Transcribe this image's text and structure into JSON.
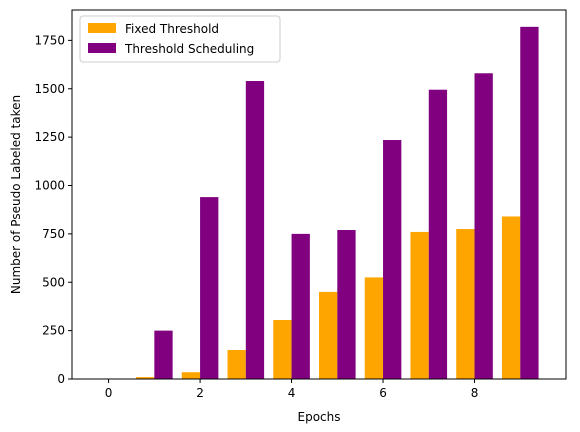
{
  "chart_data": {
    "type": "bar",
    "xlabel": "Epochs",
    "ylabel": "Number of Pseudo Labeled taken",
    "x": [
      0,
      1,
      2,
      3,
      4,
      5,
      6,
      7,
      8,
      9
    ],
    "xticks": [
      0,
      2,
      4,
      6,
      8
    ],
    "yticks": [
      0,
      250,
      500,
      750,
      1000,
      1250,
      1500,
      1750
    ],
    "xlim": [
      -0.8,
      10.0
    ],
    "ylim": [
      0,
      1907
    ],
    "grid": false,
    "legend_position": "top-left",
    "series": [
      {
        "name": "Fixed Threshold",
        "color": "#ffa500",
        "values": [
          2,
          10,
          35,
          150,
          305,
          450,
          525,
          760,
          775,
          840
        ]
      },
      {
        "name": "Threshold Scheduling",
        "color": "#800080",
        "values": [
          2,
          250,
          940,
          1540,
          750,
          770,
          1235,
          1495,
          1580,
          1820
        ]
      }
    ]
  }
}
